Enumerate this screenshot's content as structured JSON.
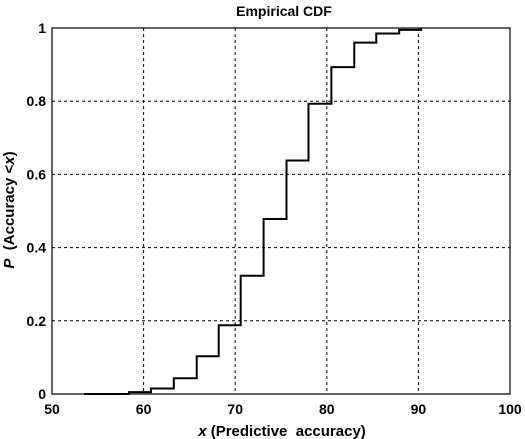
{
  "chart_data": {
    "type": "line",
    "step": true,
    "title": "Empirical CDF",
    "xlabel_var": "x",
    "xlabel_rest": " (Predictive  accuracy)",
    "ylabel_var": "P",
    "ylabel_rest": "  (Accuracy <",
    "ylabel_var2": "x",
    "ylabel_end": ")",
    "xlim": [
      50,
      100
    ],
    "ylim": [
      0,
      1
    ],
    "xticks": [
      50,
      60,
      70,
      80,
      90,
      100
    ],
    "yticks": [
      0,
      0.2,
      0.4,
      0.6,
      0.8,
      1
    ],
    "xtick_labels": [
      "50",
      "60",
      "70",
      "80",
      "90",
      "100"
    ],
    "ytick_labels": [
      "0",
      "0.2",
      "0.4",
      "0.6",
      "0.8",
      "1"
    ],
    "grid": true,
    "series": [
      {
        "x": [
          53.5,
          58.4,
          60.8,
          63.3,
          65.8,
          68.2,
          70.6,
          73.1,
          75.6,
          78.0,
          80.5,
          83.0,
          85.4,
          87.9,
          90.3
        ],
        "y": [
          0,
          0.005,
          0.015,
          0.043,
          0.103,
          0.188,
          0.323,
          0.478,
          0.638,
          0.793,
          0.893,
          0.96,
          0.985,
          0.995,
          1.0
        ]
      }
    ]
  }
}
